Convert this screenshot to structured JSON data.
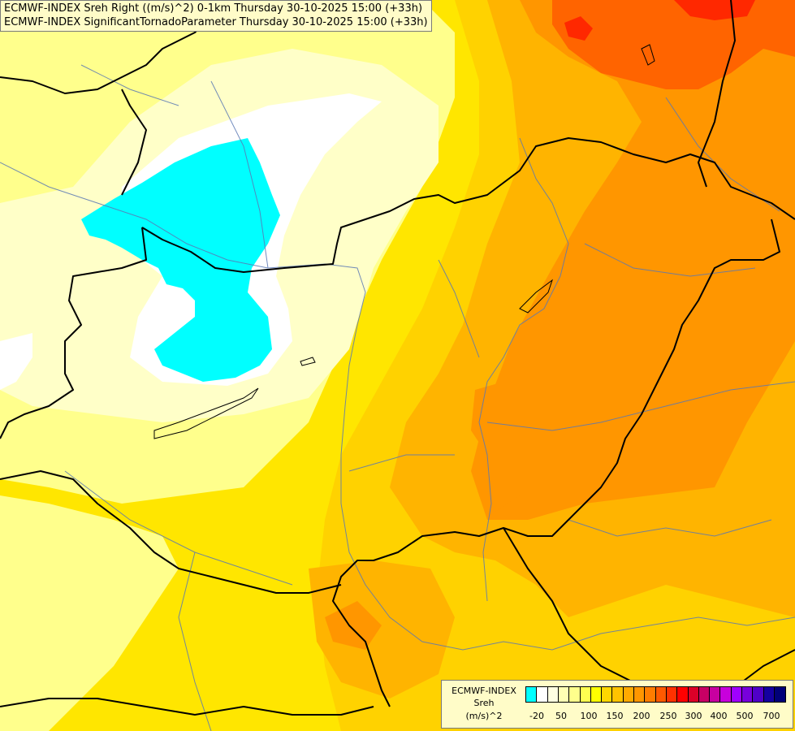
{
  "header": {
    "line1": "ECMWF-INDEX Sreh Right ((m/s)^2) 0-1km Thursday 30-10-2025 15:00 (+33h)",
    "line2": "ECMWF-INDEX SignificantTornadoParameter Thursday 30-10-2025 15:00 (+33h)"
  },
  "legend": {
    "title": "ECMWF-INDEX",
    "variable": "Sreh",
    "unit": "(m/s)^2",
    "colors": [
      "#00ffff",
      "#ffffff",
      "#ffffe1",
      "#ffffb4",
      "#ffff8c",
      "#ffff50",
      "#ffff00",
      "#ffd700",
      "#ffc300",
      "#ffaa00",
      "#ff9600",
      "#ff7d00",
      "#ff5a00",
      "#ff3200",
      "#ff0000",
      "#dc0028",
      "#c80064",
      "#c800a0",
      "#c800dc",
      "#a000ff",
      "#7800dc",
      "#5000c8",
      "#1400a0",
      "#000078"
    ],
    "ticks": [
      "-20",
      "50",
      "100",
      "150",
      "200",
      "250",
      "300",
      "400",
      "500",
      "700"
    ]
  },
  "map": {
    "fields": {
      "background": "#ffe600",
      "colors": {
        "cyan": "#00ffff",
        "white": "#ffffff",
        "cream": "#ffffc8",
        "lightyellow": "#ffff8c",
        "yellow": "#ffff00",
        "gold": "#ffd200",
        "orange": "#ffb400",
        "darkorange": "#ff9600",
        "red": "#ff6400",
        "deepred": "#ff2800"
      }
    }
  }
}
